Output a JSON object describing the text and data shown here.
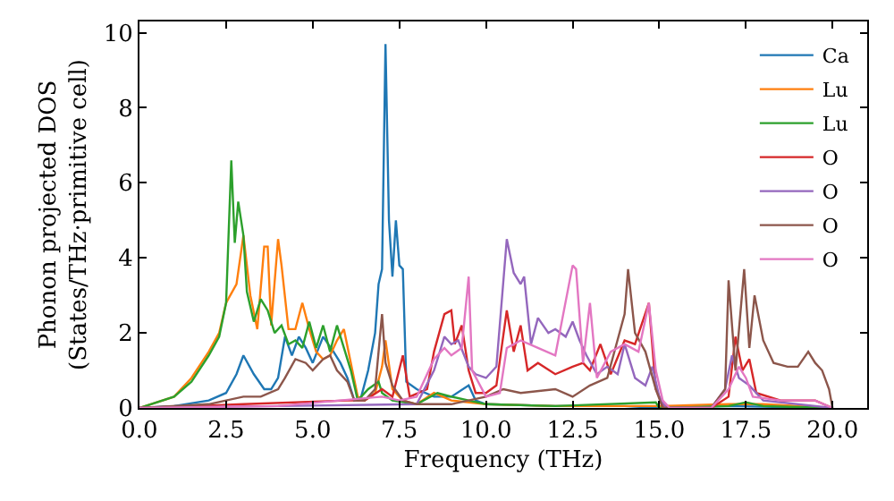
{
  "chart_data": {
    "type": "line",
    "xlabel": "Frequency (THz)",
    "ylabel": "Phonon projected DOS\n(States/THz·primitive cell)",
    "xlim": [
      0,
      21
    ],
    "ylim": [
      0,
      10.3
    ],
    "xticks": [
      {
        "value": 0,
        "label": "0.0"
      },
      {
        "value": 2.5,
        "label": "2.5"
      },
      {
        "value": 5,
        "label": "5.0"
      },
      {
        "value": 7.5,
        "label": "7.5"
      },
      {
        "value": 10,
        "label": "10.0"
      },
      {
        "value": 12.5,
        "label": "12.5"
      },
      {
        "value": 15,
        "label": "15.0"
      },
      {
        "value": 17.5,
        "label": "17.5"
      },
      {
        "value": 20,
        "label": "20.0"
      }
    ],
    "yticks": [
      0,
      2,
      4,
      6,
      8,
      10
    ],
    "legend": "top right",
    "marker": "none",
    "line_style": "solid",
    "series": [
      {
        "name": "Ca",
        "color": "#1f77b4",
        "x": [
          0,
          1,
          2,
          2.5,
          2.8,
          3.0,
          3.3,
          3.6,
          3.8,
          4.0,
          4.2,
          4.4,
          4.6,
          4.8,
          5.0,
          5.3,
          5.6,
          5.8,
          6.0,
          6.1,
          6.2,
          6.4,
          6.6,
          6.8,
          6.9,
          7.0,
          7.1,
          7.2,
          7.3,
          7.4,
          7.5,
          7.6,
          7.7,
          8.0,
          8.5,
          9.0,
          9.5,
          9.7,
          10,
          12,
          14,
          15,
          17,
          20
        ],
        "values": [
          0,
          0.05,
          0.2,
          0.4,
          0.9,
          1.4,
          0.9,
          0.5,
          0.5,
          0.8,
          1.9,
          1.4,
          1.9,
          1.6,
          1.2,
          1.9,
          1.5,
          1.2,
          0.8,
          0.5,
          0.2,
          0.3,
          1.0,
          2.0,
          3.3,
          3.7,
          9.7,
          5.0,
          3.5,
          5.0,
          3.8,
          3.7,
          0.7,
          0.5,
          0.3,
          0.3,
          0.6,
          0.2,
          0.1,
          0.05,
          0.05,
          0,
          0.05,
          0
        ]
      },
      {
        "name": "Lu",
        "color": "#ff7f0e",
        "x": [
          0,
          1,
          1.5,
          2,
          2.3,
          2.5,
          2.8,
          3.0,
          3.2,
          3.4,
          3.6,
          3.7,
          3.8,
          4.0,
          4.1,
          4.3,
          4.5,
          4.7,
          4.9,
          5.1,
          5.3,
          5.5,
          5.7,
          5.9,
          6.1,
          6.3,
          6.5,
          6.8,
          7.0,
          7.1,
          7.3,
          7.6,
          8,
          8.5,
          9,
          10,
          12,
          15,
          17,
          18,
          20
        ],
        "values": [
          0,
          0.3,
          0.8,
          1.5,
          2.0,
          2.8,
          3.3,
          4.6,
          3.0,
          2.1,
          4.3,
          4.3,
          2.2,
          4.5,
          3.8,
          2.1,
          2.1,
          2.8,
          2.1,
          1.5,
          1.3,
          1.4,
          1.8,
          2.1,
          1.2,
          0.3,
          0.2,
          0.4,
          1.1,
          1.8,
          0.5,
          0.2,
          0.1,
          0.4,
          0.2,
          0.1,
          0.05,
          0.05,
          0.1,
          0.1,
          0
        ]
      },
      {
        "name": "Lu",
        "color": "#2ca02c",
        "x": [
          0,
          1,
          1.5,
          2,
          2.3,
          2.5,
          2.65,
          2.75,
          2.85,
          3.0,
          3.1,
          3.3,
          3.5,
          3.7,
          3.9,
          4.1,
          4.3,
          4.5,
          4.7,
          4.9,
          5.1,
          5.3,
          5.5,
          5.7,
          5.9,
          6.1,
          6.3,
          6.6,
          6.9,
          7.0,
          7.3,
          8,
          8.6,
          9.0,
          9.5,
          10,
          12,
          14.9,
          15,
          17,
          17.5,
          18,
          20
        ],
        "values": [
          0,
          0.3,
          0.7,
          1.4,
          1.9,
          2.8,
          6.6,
          4.4,
          5.5,
          4.6,
          3.1,
          2.3,
          2.9,
          2.6,
          2.0,
          2.2,
          1.7,
          1.8,
          1.6,
          2.3,
          1.6,
          2.2,
          1.5,
          2.2,
          1.6,
          1.0,
          0.2,
          0.5,
          0.7,
          0.4,
          0.2,
          0.1,
          0.4,
          0.3,
          0.2,
          0.1,
          0.05,
          0.15,
          0,
          0.05,
          0.15,
          0.05,
          0
        ]
      },
      {
        "name": "O",
        "color": "#d62728",
        "x": [
          0,
          3,
          6,
          6.5,
          7.0,
          7.3,
          7.6,
          7.8,
          8.3,
          8.5,
          8.8,
          9.0,
          9.1,
          9.3,
          9.5,
          9.7,
          10,
          10.3,
          10.6,
          10.8,
          11.0,
          11.2,
          11.5,
          12,
          12.5,
          12.8,
          13,
          13.3,
          13.6,
          14,
          14.3,
          14.7,
          14.9,
          15.1,
          15.3,
          16.5,
          17.0,
          17.2,
          17.4,
          17.6,
          17.8,
          18.5,
          19.5,
          20
        ],
        "values": [
          0,
          0.1,
          0.2,
          0.2,
          0.5,
          0.3,
          1.4,
          0.3,
          0.5,
          1.5,
          2.5,
          2.6,
          1.7,
          2.2,
          1.0,
          0.4,
          0.4,
          0.6,
          2.6,
          1.5,
          2.2,
          1.0,
          1.2,
          0.9,
          1.1,
          1.2,
          1.0,
          1.7,
          0.9,
          1.8,
          1.7,
          2.8,
          0.5,
          0.1,
          0,
          0,
          0.3,
          1.9,
          1.0,
          1.3,
          0.4,
          0.2,
          0.2,
          0
        ]
      },
      {
        "name": "O",
        "color": "#9467bd",
        "x": [
          0,
          4,
          8,
          8.5,
          8.8,
          9.0,
          9.2,
          9.5,
          9.7,
          10,
          10.3,
          10.6,
          10.8,
          11.0,
          11.1,
          11.3,
          11.5,
          11.8,
          12.0,
          12.3,
          12.5,
          12.7,
          12.9,
          13.2,
          13.5,
          13.8,
          14,
          14.3,
          14.6,
          14.8,
          15.0,
          15.2,
          16.5,
          16.9,
          17.1,
          17.3,
          17.6,
          18,
          20
        ],
        "values": [
          0,
          0.05,
          0.1,
          1.0,
          1.9,
          1.7,
          1.8,
          1.1,
          0.9,
          0.8,
          1.1,
          4.5,
          3.6,
          3.3,
          3.5,
          1.7,
          2.4,
          2.0,
          2.1,
          1.9,
          2.3,
          1.8,
          1.4,
          0.9,
          1.1,
          0.9,
          1.7,
          0.8,
          0.6,
          1.1,
          0.3,
          0,
          0,
          0.5,
          1.4,
          0.8,
          0.6,
          0.2,
          0
        ]
      },
      {
        "name": "O",
        "color": "#8c564b",
        "x": [
          0,
          2,
          2.5,
          3,
          3.5,
          4,
          4.2,
          4.5,
          4.8,
          5.0,
          5.3,
          5.5,
          5.7,
          6.0,
          6.2,
          6.5,
          6.8,
          7.0,
          7.1,
          7.3,
          7.6,
          8,
          9,
          10,
          10.5,
          11,
          12,
          12.5,
          13,
          13.5,
          14,
          14.1,
          14.3,
          14.6,
          14.9,
          15.1,
          16.5,
          16.9,
          17.0,
          17.2,
          17.45,
          17.6,
          17.75,
          18,
          18.3,
          18.7,
          19.0,
          19.3,
          19.5,
          19.7,
          19.9,
          20
        ],
        "values": [
          0,
          0.1,
          0.2,
          0.3,
          0.3,
          0.5,
          0.8,
          1.3,
          1.2,
          1.0,
          1.3,
          1.4,
          1.0,
          0.7,
          0.2,
          0.2,
          0.5,
          2.5,
          1.2,
          0.6,
          0.2,
          0.1,
          0.1,
          0.3,
          0.5,
          0.4,
          0.5,
          0.3,
          0.6,
          0.8,
          2.5,
          3.7,
          2.0,
          1.5,
          0.5,
          0,
          0,
          0.5,
          3.4,
          1.0,
          3.7,
          1.6,
          3.0,
          1.8,
          1.2,
          1.1,
          1.1,
          1.5,
          1.2,
          1.0,
          0.5,
          0
        ]
      },
      {
        "name": "O",
        "color": "#e377c2",
        "x": [
          0,
          4,
          7,
          7.5,
          8.0,
          8.5,
          8.8,
          9.0,
          9.3,
          9.5,
          9.6,
          10,
          10.4,
          10.6,
          11,
          11.5,
          12,
          12.5,
          12.6,
          12.8,
          13,
          13.2,
          13.6,
          14,
          14.4,
          14.7,
          14.9,
          15.1,
          15.3,
          16.5,
          17,
          17.3,
          17.5,
          17.7,
          18.5,
          19.5,
          20
        ],
        "values": [
          0,
          0.05,
          0.3,
          0.2,
          0.3,
          1.3,
          1.6,
          1.4,
          1.6,
          3.5,
          1.0,
          0.3,
          0.4,
          1.6,
          1.8,
          1.6,
          1.4,
          3.8,
          3.7,
          1.2,
          2.8,
          0.8,
          1.5,
          1.7,
          1.5,
          2.8,
          1.0,
          0.2,
          0,
          0,
          0.5,
          1.1,
          0.8,
          0.3,
          0.2,
          0.2,
          0
        ]
      }
    ]
  }
}
